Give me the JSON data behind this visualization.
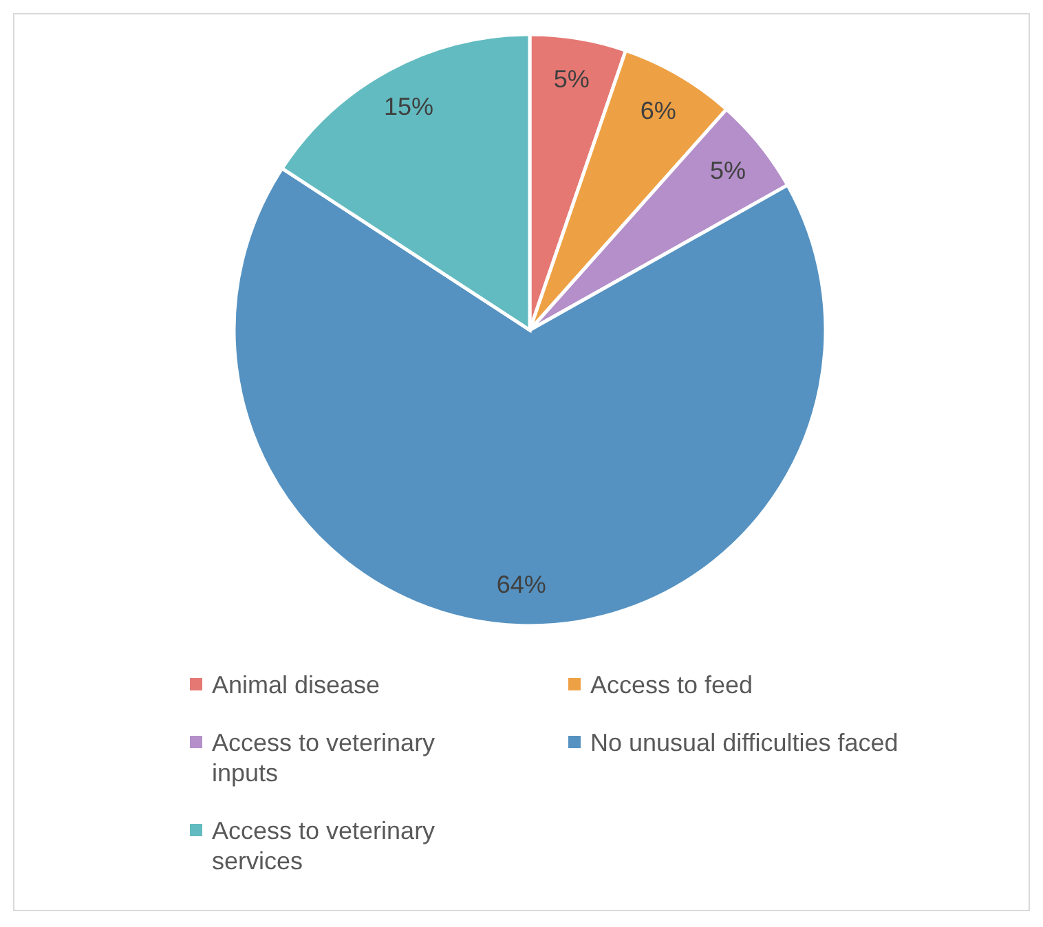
{
  "chart_data": {
    "type": "pie",
    "categories": [
      "Animal disease",
      "Access to feed",
      "Access to veterinary inputs",
      "No unusual difficulties faced",
      "Access to veterinary services"
    ],
    "values": [
      5,
      6,
      5,
      64,
      15
    ],
    "colors": [
      "#e57873",
      "#eea144",
      "#b48fc9",
      "#5592c1",
      "#62bbc0"
    ],
    "value_labels": [
      "5%",
      "6%",
      "5%",
      "64%",
      "15%"
    ],
    "legend": "bottom"
  }
}
